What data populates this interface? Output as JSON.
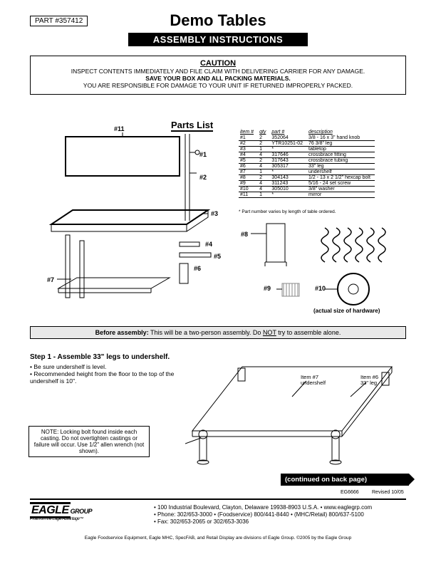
{
  "header": {
    "part_number": "PART #357412",
    "title": "Demo Tables",
    "subtitle": "ASSEMBLY INSTRUCTIONS"
  },
  "caution": {
    "heading": "CAUTION",
    "line1": "INSPECT CONTENTS IMMEDIATELY AND FILE CLAIM WITH DELIVERING CARRIER FOR ANY DAMAGE.",
    "line2": "SAVE YOUR BOX AND ALL PACKING MATERIALS.",
    "line3": "YOU ARE RESPONSIBLE FOR DAMAGE TO YOUR UNIT IF RETURNED IMPROPERLY PACKED."
  },
  "parts_list": {
    "heading": "Parts List",
    "columns": [
      "item #",
      "qty",
      "part #",
      "description"
    ],
    "rows": [
      [
        "#1",
        "2",
        "352064",
        "3/8 - 16 x 3\" hand knob"
      ],
      [
        "#2",
        "2",
        "YTR10251-02",
        "76 3/8\" leg"
      ],
      [
        "#3",
        "1",
        "*",
        "tabletop"
      ],
      [
        "#4",
        "4",
        "317646",
        "crossbrace fitting"
      ],
      [
        "#5",
        "2",
        "317643",
        "crossbrace tubing"
      ],
      [
        "#6",
        "4",
        "305317",
        "33\" leg"
      ],
      [
        "#7",
        "1",
        "*",
        "undershelf"
      ],
      [
        "#8",
        "2",
        "304143",
        "1/2 - 13 x 2 1/2\" hexcap bolt"
      ],
      [
        "#9",
        "4",
        "311243",
        "5/16 - 24 set screw"
      ],
      [
        "#10",
        "4",
        "305010",
        "3/8\" washer"
      ],
      [
        "#11",
        "1",
        "*",
        "mirror"
      ]
    ],
    "footnote": "* Part number varies by length of table ordered."
  },
  "exploded_labels": {
    "l1": "#1",
    "l2": "#2",
    "l3": "#3",
    "l4": "#4",
    "l5": "#5",
    "l6": "#6",
    "l7": "#7",
    "l8": "#8",
    "l9": "#9",
    "l10": "#10",
    "l11": "#11"
  },
  "hardware": {
    "actual_size": "(actual size of hardware)"
  },
  "before": {
    "prefix": "Before assembly:",
    "text": " This will be a two-person assembly. Do ",
    "not": "NOT",
    "text2": " try to assemble alone."
  },
  "step1": {
    "head": "Step 1 - Assemble 33\" legs to undershelf.",
    "b1": "• Be sure undershelf is level.",
    "b2": "• Recommended height from the floor to the top of the undershelf is 10\".",
    "note": "NOTE: Locking bolt found inside each casting. Do not overtighten castings or failure will occur. Use 1/2\" allen wrench (not shown).",
    "label_undershelf": "Item #7\nundershelf",
    "label_leg": "Item #6\n33\" leg"
  },
  "continued": "(continued on back page)",
  "docnum": "EG6666",
  "revised": "Revised 10/05",
  "footer": {
    "logo": "EAGLE",
    "logo_sub": "GROUP",
    "tagline": "Profit from the Eagle Advantage™",
    "addr": "• 100 Industrial Boulevard, Clayton, Delaware 19938-8903 U.S.A. • www.eaglegrp.com",
    "phone": "• Phone: 302/653-3000 • (Foodservice) 800/441-8440 • (MHC/Retail) 800/637-5100",
    "fax": "• Fax: 302/653-2065 or 302/653-3036",
    "disclaimer": "Eagle Foodservice Equipment, Eagle MHC, SpecFAB, and Retail Display are divisions of Eagle Group. ©2005 by the Eagle Group"
  }
}
